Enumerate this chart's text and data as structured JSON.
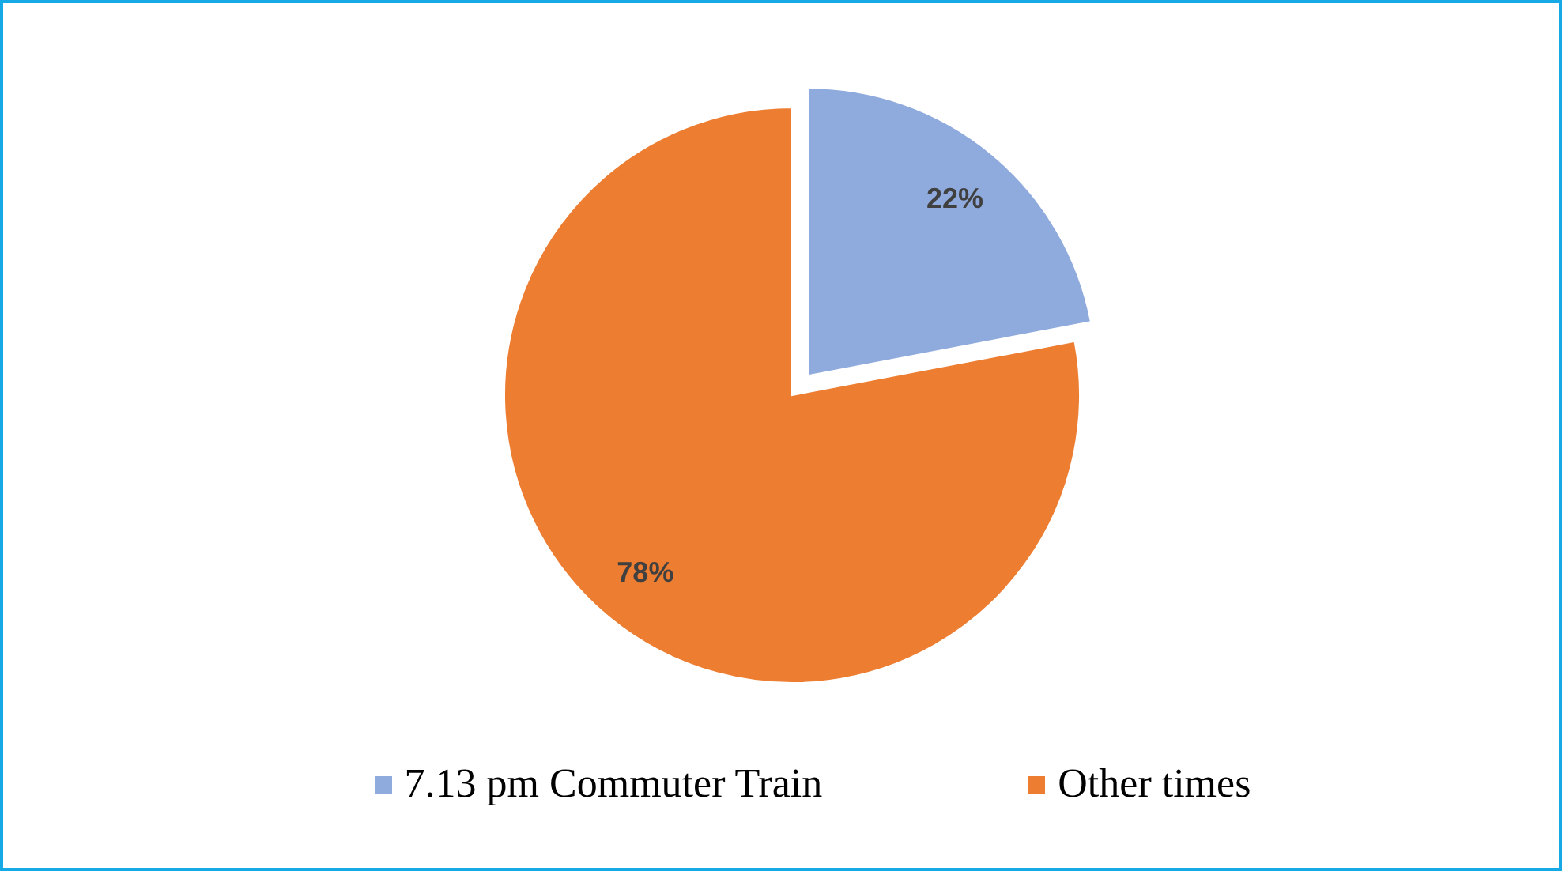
{
  "chart_data": {
    "type": "pie",
    "categories": [
      "7.13 pm Commuter Train",
      "Other times"
    ],
    "values": [
      22,
      78
    ],
    "colors": [
      "#8faadc",
      "#ed7d31"
    ],
    "value_labels": [
      "22%",
      "78%"
    ],
    "legend": "bottom"
  }
}
